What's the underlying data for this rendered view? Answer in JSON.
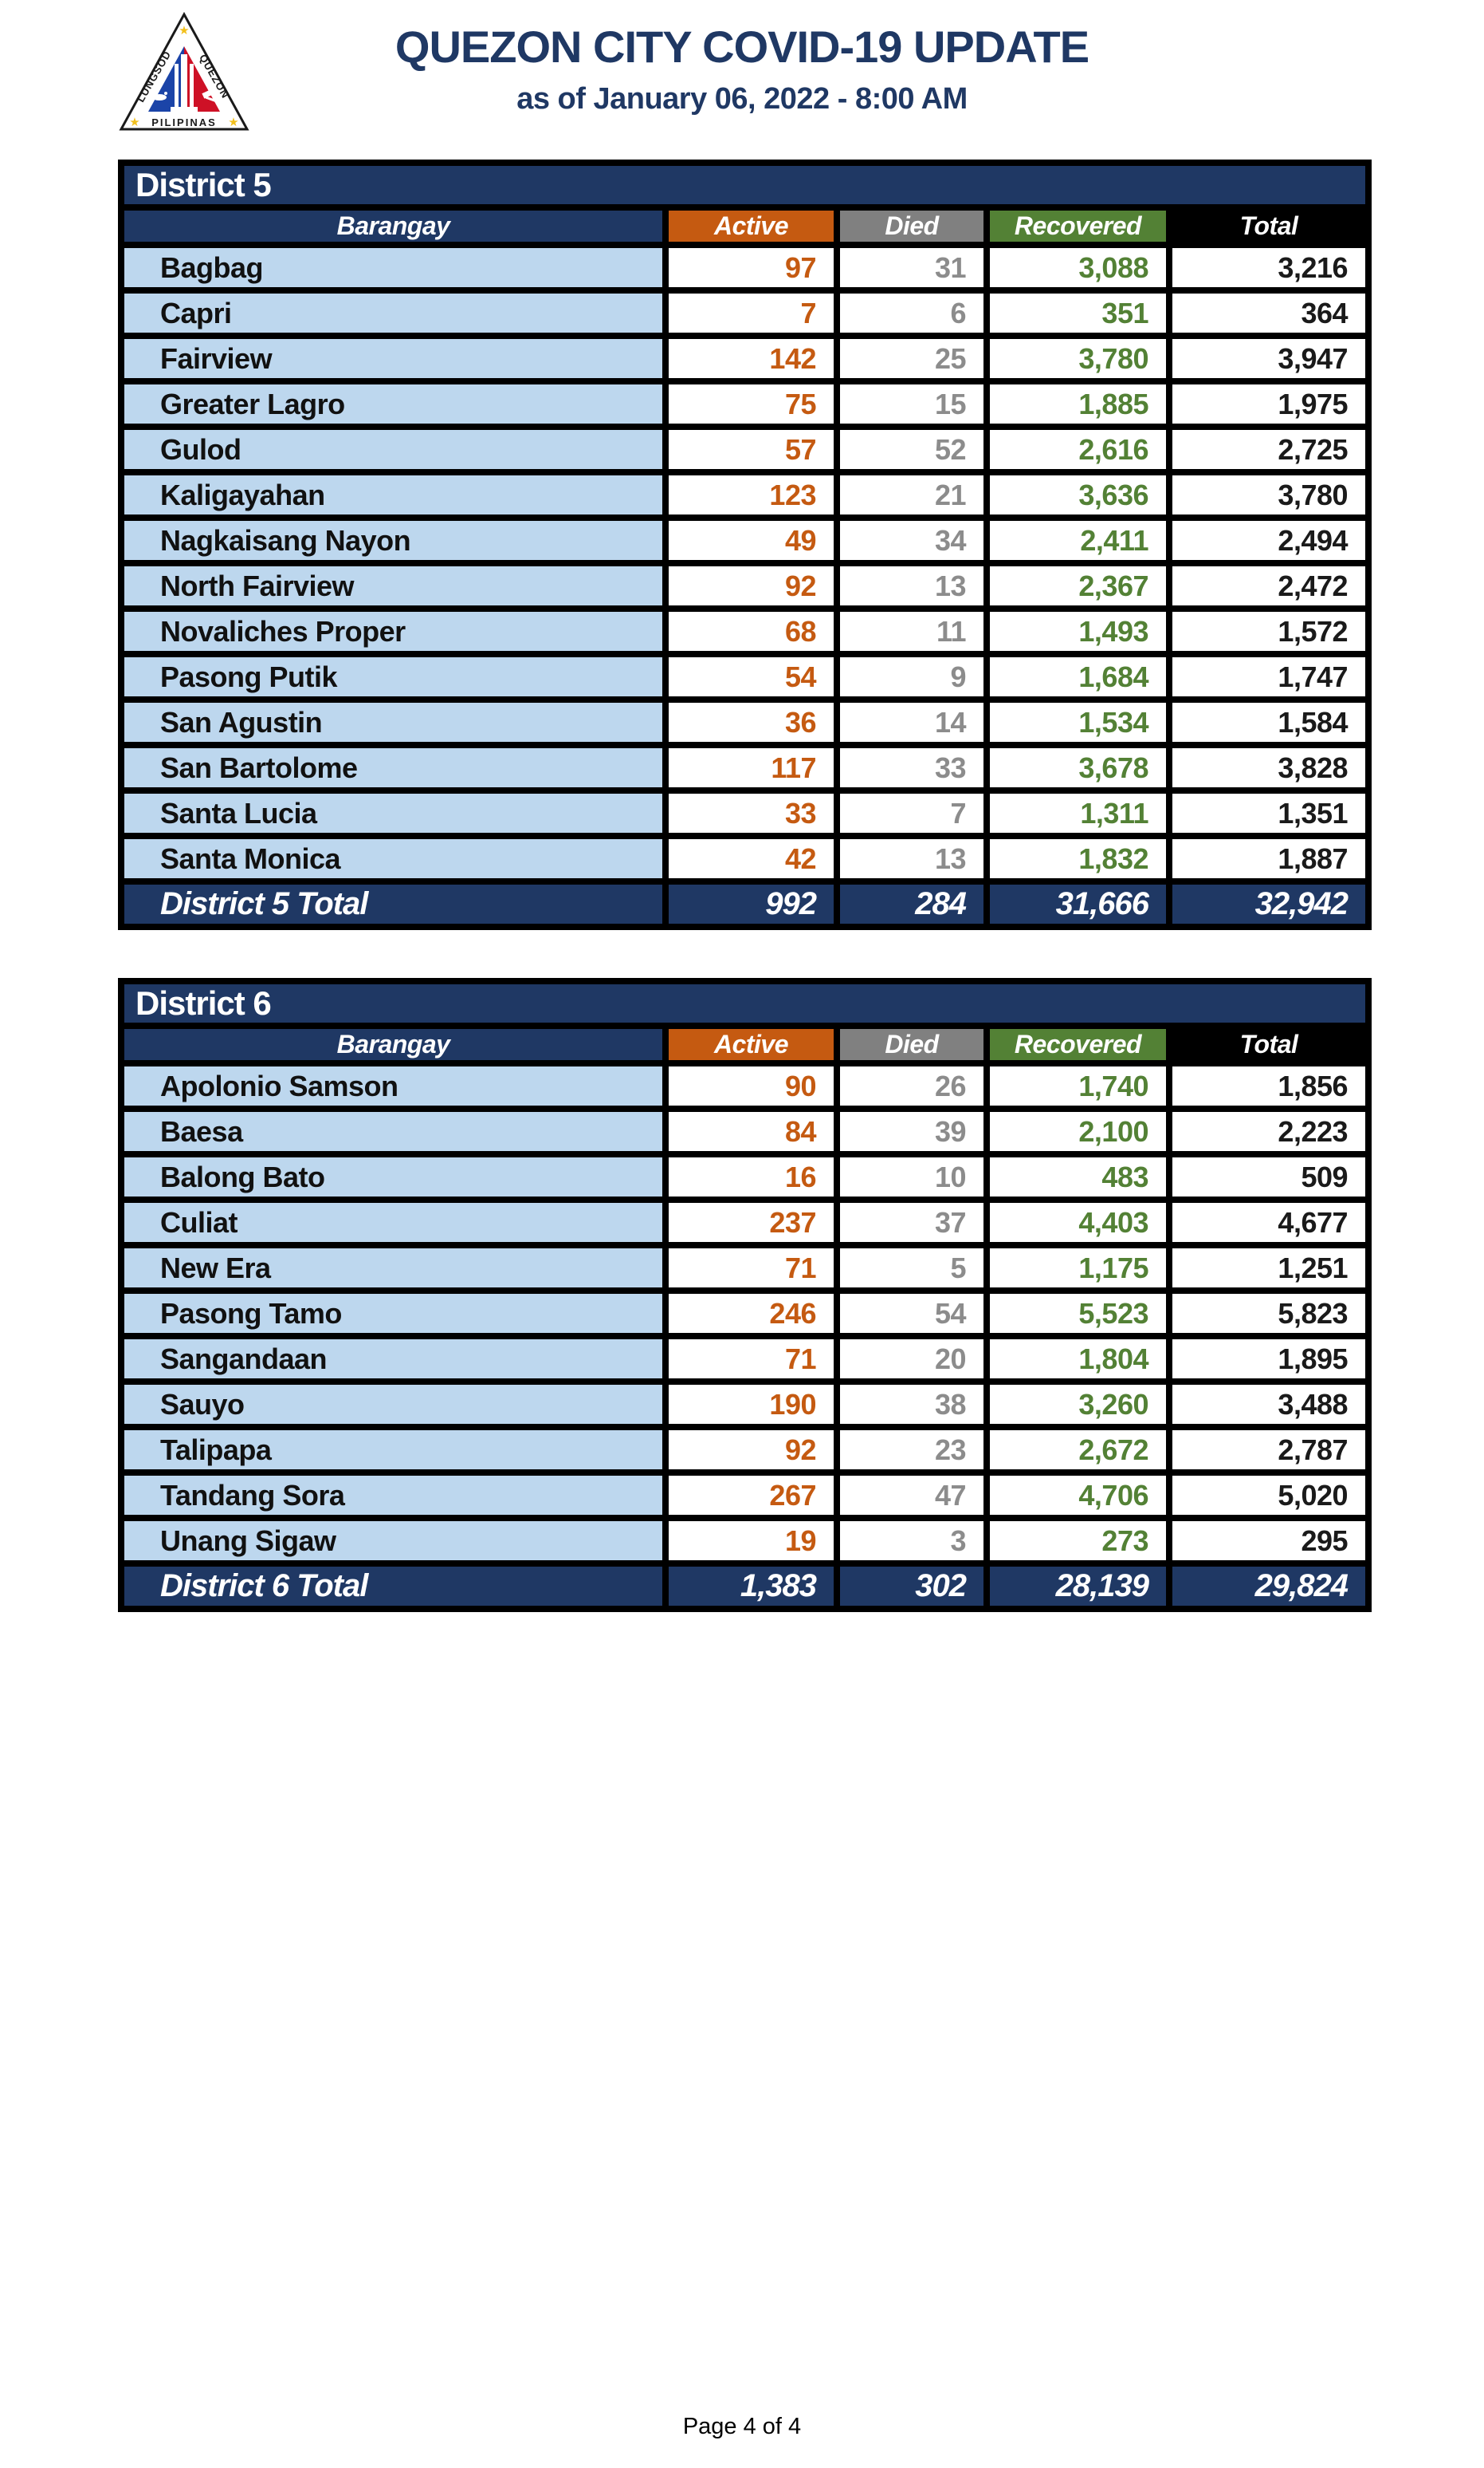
{
  "header": {
    "title": "QUEZON CITY COVID-19 UPDATE",
    "subtitle": "as of January 06, 2022 - 8:00 AM",
    "logo": {
      "text_left": "LUNGSOD",
      "text_right": "QUEZON",
      "text_bottom": "PILIPINAS"
    }
  },
  "columns": [
    "Barangay",
    "Active",
    "Died",
    "Recovered",
    "Total"
  ],
  "colors": {
    "navy": "#1F3864",
    "orange": "#C55A11",
    "gray": "#808080",
    "green": "#538135",
    "black": "#000000",
    "light_blue": "#BDD7EE",
    "active_text": "#C55A11",
    "died_text": "#8C8C8C",
    "recovered_text": "#538135"
  },
  "tables": [
    {
      "district": "District 5",
      "rows": [
        {
          "name": "Bagbag",
          "active": "97",
          "died": "31",
          "recovered": "3,088",
          "total": "3,216"
        },
        {
          "name": "Capri",
          "active": "7",
          "died": "6",
          "recovered": "351",
          "total": "364"
        },
        {
          "name": "Fairview",
          "active": "142",
          "died": "25",
          "recovered": "3,780",
          "total": "3,947"
        },
        {
          "name": "Greater Lagro",
          "active": "75",
          "died": "15",
          "recovered": "1,885",
          "total": "1,975"
        },
        {
          "name": "Gulod",
          "active": "57",
          "died": "52",
          "recovered": "2,616",
          "total": "2,725"
        },
        {
          "name": "Kaligayahan",
          "active": "123",
          "died": "21",
          "recovered": "3,636",
          "total": "3,780"
        },
        {
          "name": "Nagkaisang Nayon",
          "active": "49",
          "died": "34",
          "recovered": "2,411",
          "total": "2,494"
        },
        {
          "name": "North Fairview",
          "active": "92",
          "died": "13",
          "recovered": "2,367",
          "total": "2,472"
        },
        {
          "name": "Novaliches Proper",
          "active": "68",
          "died": "11",
          "recovered": "1,493",
          "total": "1,572"
        },
        {
          "name": "Pasong Putik",
          "active": "54",
          "died": "9",
          "recovered": "1,684",
          "total": "1,747"
        },
        {
          "name": "San Agustin",
          "active": "36",
          "died": "14",
          "recovered": "1,534",
          "total": "1,584"
        },
        {
          "name": "San Bartolome",
          "active": "117",
          "died": "33",
          "recovered": "3,678",
          "total": "3,828"
        },
        {
          "name": "Santa Lucia",
          "active": "33",
          "died": "7",
          "recovered": "1,311",
          "total": "1,351"
        },
        {
          "name": "Santa Monica",
          "active": "42",
          "died": "13",
          "recovered": "1,832",
          "total": "1,887"
        }
      ],
      "total": {
        "name": "District 5 Total",
        "active": "992",
        "died": "284",
        "recovered": "31,666",
        "total": "32,942"
      }
    },
    {
      "district": "District 6",
      "rows": [
        {
          "name": "Apolonio Samson",
          "active": "90",
          "died": "26",
          "recovered": "1,740",
          "total": "1,856"
        },
        {
          "name": "Baesa",
          "active": "84",
          "died": "39",
          "recovered": "2,100",
          "total": "2,223"
        },
        {
          "name": "Balong Bato",
          "active": "16",
          "died": "10",
          "recovered": "483",
          "total": "509"
        },
        {
          "name": "Culiat",
          "active": "237",
          "died": "37",
          "recovered": "4,403",
          "total": "4,677"
        },
        {
          "name": "New Era",
          "active": "71",
          "died": "5",
          "recovered": "1,175",
          "total": "1,251"
        },
        {
          "name": "Pasong Tamo",
          "active": "246",
          "died": "54",
          "recovered": "5,523",
          "total": "5,823"
        },
        {
          "name": "Sangandaan",
          "active": "71",
          "died": "20",
          "recovered": "1,804",
          "total": "1,895"
        },
        {
          "name": "Sauyo",
          "active": "190",
          "died": "38",
          "recovered": "3,260",
          "total": "3,488"
        },
        {
          "name": "Talipapa",
          "active": "92",
          "died": "23",
          "recovered": "2,672",
          "total": "2,787"
        },
        {
          "name": "Tandang Sora",
          "active": "267",
          "died": "47",
          "recovered": "4,706",
          "total": "5,020"
        },
        {
          "name": "Unang Sigaw",
          "active": "19",
          "died": "3",
          "recovered": "273",
          "total": "295"
        }
      ],
      "total": {
        "name": "District 6 Total",
        "active": "1,383",
        "died": "302",
        "recovered": "28,139",
        "total": "29,824"
      }
    }
  ],
  "footer": {
    "page_label": "Page 4 of 4"
  }
}
